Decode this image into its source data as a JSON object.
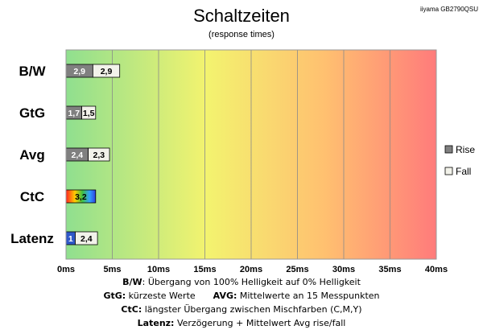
{
  "chart_data": {
    "type": "bar",
    "orientation": "horizontal",
    "stacked_side_by_side": true,
    "title": "Schaltzeiten",
    "subtitle": "(response times)",
    "model": "iiyama GB2790QSU",
    "categories": [
      "B/W",
      "GtG",
      "Avg",
      "CtC",
      "Latenz"
    ],
    "series": [
      {
        "name": "Rise",
        "color": "#808080",
        "values": [
          2.9,
          1.7,
          2.4,
          null,
          null
        ]
      },
      {
        "name": "Fall",
        "color": "#f2f2ea",
        "values": [
          2.9,
          1.5,
          2.3,
          null,
          2.4
        ]
      }
    ],
    "ctc": {
      "value": 3.2,
      "label": "3,2"
    },
    "latency": {
      "value": 1.0,
      "label": "1",
      "color": "#2f58c8"
    },
    "xlim": [
      0,
      40
    ],
    "xticks": [
      0,
      5,
      10,
      15,
      20,
      25,
      30,
      35,
      40
    ],
    "xtick_labels": [
      "0ms",
      "5ms",
      "10ms",
      "15ms",
      "20ms",
      "25ms",
      "30ms",
      "35ms",
      "40ms"
    ],
    "value_labels": {
      "B/W": [
        "2,9",
        "2,9"
      ],
      "GtG": [
        "1,7",
        "1,5"
      ],
      "Avg": [
        "2,4",
        "2,3"
      ],
      "Latenz": [
        "1",
        "2,4"
      ]
    },
    "legend": {
      "position": "right",
      "entries": [
        "Rise",
        "Fall"
      ]
    },
    "grid": true,
    "background_gradient": [
      "#90e090",
      "#f0f070",
      "#ffc070",
      "#ff7a7a"
    ]
  },
  "notes": {
    "bw_key": "B/W",
    "bw_text": ":  Übergang von 100% Helligkeit auf 0% Helligkeit",
    "gtg_key": "GtG:",
    "gtg_text": " kürzeste  Werte",
    "avg_key": "AVG:",
    "avg_text": " Mittelwerte  an 15 Messpunkten",
    "ctc_key": "CtC:",
    "ctc_text": " längster Übergang  zwischen Mischfarben  (C,M,Y)",
    "lat_key": "Latenz:",
    "lat_text": " Verzögerung  + Mittelwert  Avg rise/fall"
  }
}
